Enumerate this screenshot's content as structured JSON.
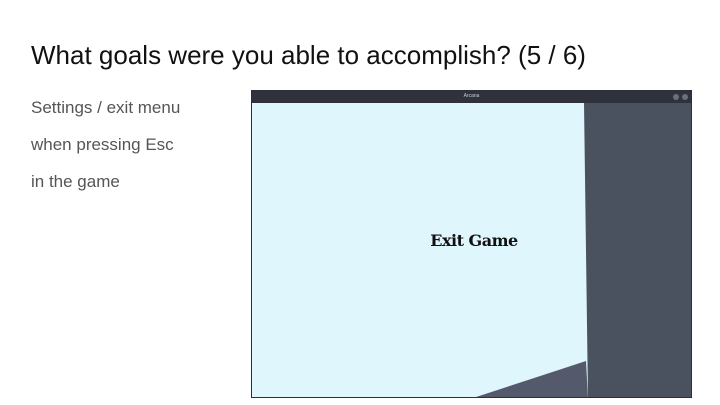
{
  "slide": {
    "title": "What goals were you able to accomplish? (5 / 6)",
    "body_lines": [
      "Settings / exit menu",
      "when pressing Esc",
      "in the game"
    ]
  },
  "window": {
    "title": "Arcana",
    "controls": [
      "minimize-icon",
      "close-icon"
    ]
  },
  "game": {
    "menu_item": "Exit Game"
  },
  "colors": {
    "sky": "#dff6fc",
    "wall": "#4a5260",
    "floor": "#545a6c",
    "titlebar": "#2f323a",
    "slide_title": "#111111",
    "slide_body": "#555555"
  }
}
